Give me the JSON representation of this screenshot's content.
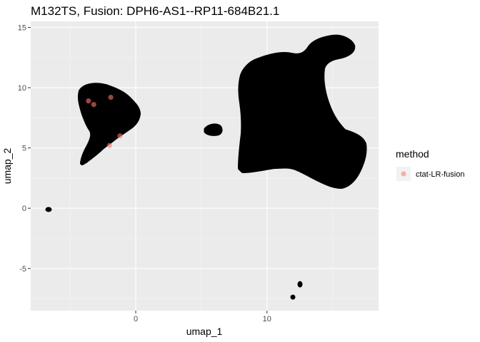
{
  "chart_data": {
    "type": "scatter",
    "title": "M132TS, Fusion:  DPH6-AS1--RP11-684B21.1",
    "xlabel": "umap_1",
    "ylabel": "umap_2",
    "xlim": [
      -8,
      18.5
    ],
    "ylim": [
      -8.5,
      15.5
    ],
    "x_ticks": [
      0,
      10
    ],
    "y_ticks": [
      -5,
      0,
      5,
      10,
      15
    ],
    "grid": true,
    "panel_background": "#ebebeb",
    "background_point_color": "#000000",
    "legend": {
      "title": "method",
      "placement": "right",
      "entries": [
        {
          "label": "ctat-LR-fusion",
          "color": "#f8766d"
        }
      ]
    },
    "series": [
      {
        "name": "ctat-LR-fusion",
        "color": "#f8766d",
        "points": [
          {
            "x": -3.6,
            "y": 8.9
          },
          {
            "x": -3.2,
            "y": 8.6
          },
          {
            "x": -1.9,
            "y": 9.2
          },
          {
            "x": -1.2,
            "y": 6.0
          },
          {
            "x": -2.0,
            "y": 5.2
          }
        ]
      }
    ]
  }
}
